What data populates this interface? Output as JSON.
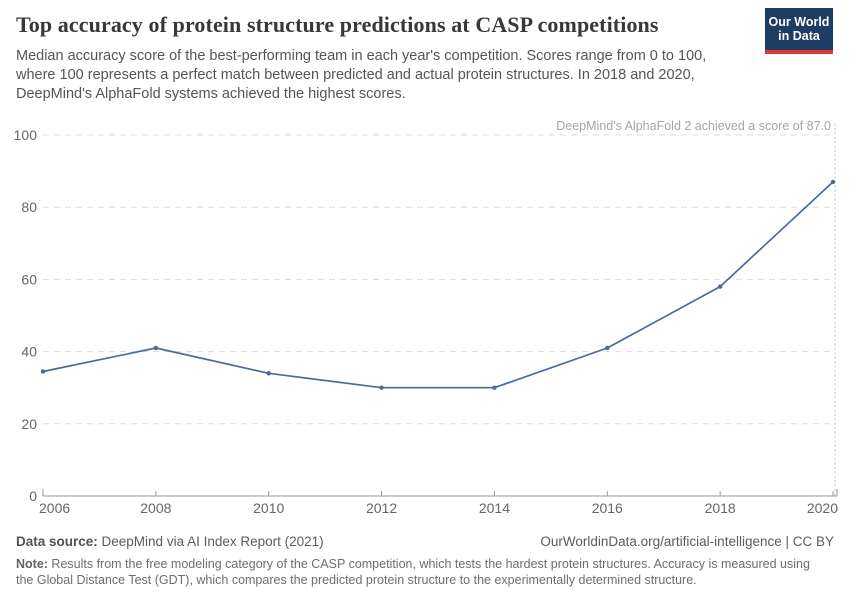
{
  "header": {
    "title": "Top accuracy of protein structure predictions at CASP competitions",
    "subtitle": "Median accuracy score of the best-performing team in each year's competition. Scores range from 0 to 100, where 100 represents a perfect match between predicted and actual protein structures. In 2018 and 2020, DeepMind's AlphaFold systems achieved the highest scores.",
    "logo": {
      "line1": "Our World",
      "line2": "in Data",
      "bg_color": "#1d3d63",
      "accent_color": "#d73a33"
    }
  },
  "chart_data": {
    "type": "line",
    "title": "Top accuracy of protein structure predictions at CASP competitions",
    "x": [
      2006,
      2008,
      2010,
      2012,
      2014,
      2016,
      2018,
      2020
    ],
    "values": [
      34.5,
      41,
      34,
      30,
      30,
      41,
      58,
      87
    ],
    "xlabel": "",
    "ylabel": "",
    "ylim": [
      0,
      100
    ],
    "yticks": [
      0,
      20,
      40,
      60,
      80,
      100
    ],
    "grid": "horizontal-dashed",
    "legend_position": "none",
    "annotation": "DeepMind's AlphaFold 2 achieved a score of 87.0",
    "annotation_x": 2020,
    "colors": {
      "line": "#4c6a9c",
      "grid": "#dddddd",
      "axis": "#999999",
      "tick_label": "#666666",
      "annotation_text": "#a5a5a5",
      "annotation_line": "#cccccc"
    }
  },
  "footer": {
    "source_label": "Data source:",
    "source_value": " DeepMind via AI Index Report (2021)",
    "link": "OurWorldinData.org/artificial-intelligence | CC BY",
    "note_label": "Note:",
    "note_value": " Results from the free modeling category of the CASP competition, which tests the hardest protein structures. Accuracy is measured using the Global Distance Test (GDT), which compares the predicted protein structure to the experimentally determined structure."
  }
}
